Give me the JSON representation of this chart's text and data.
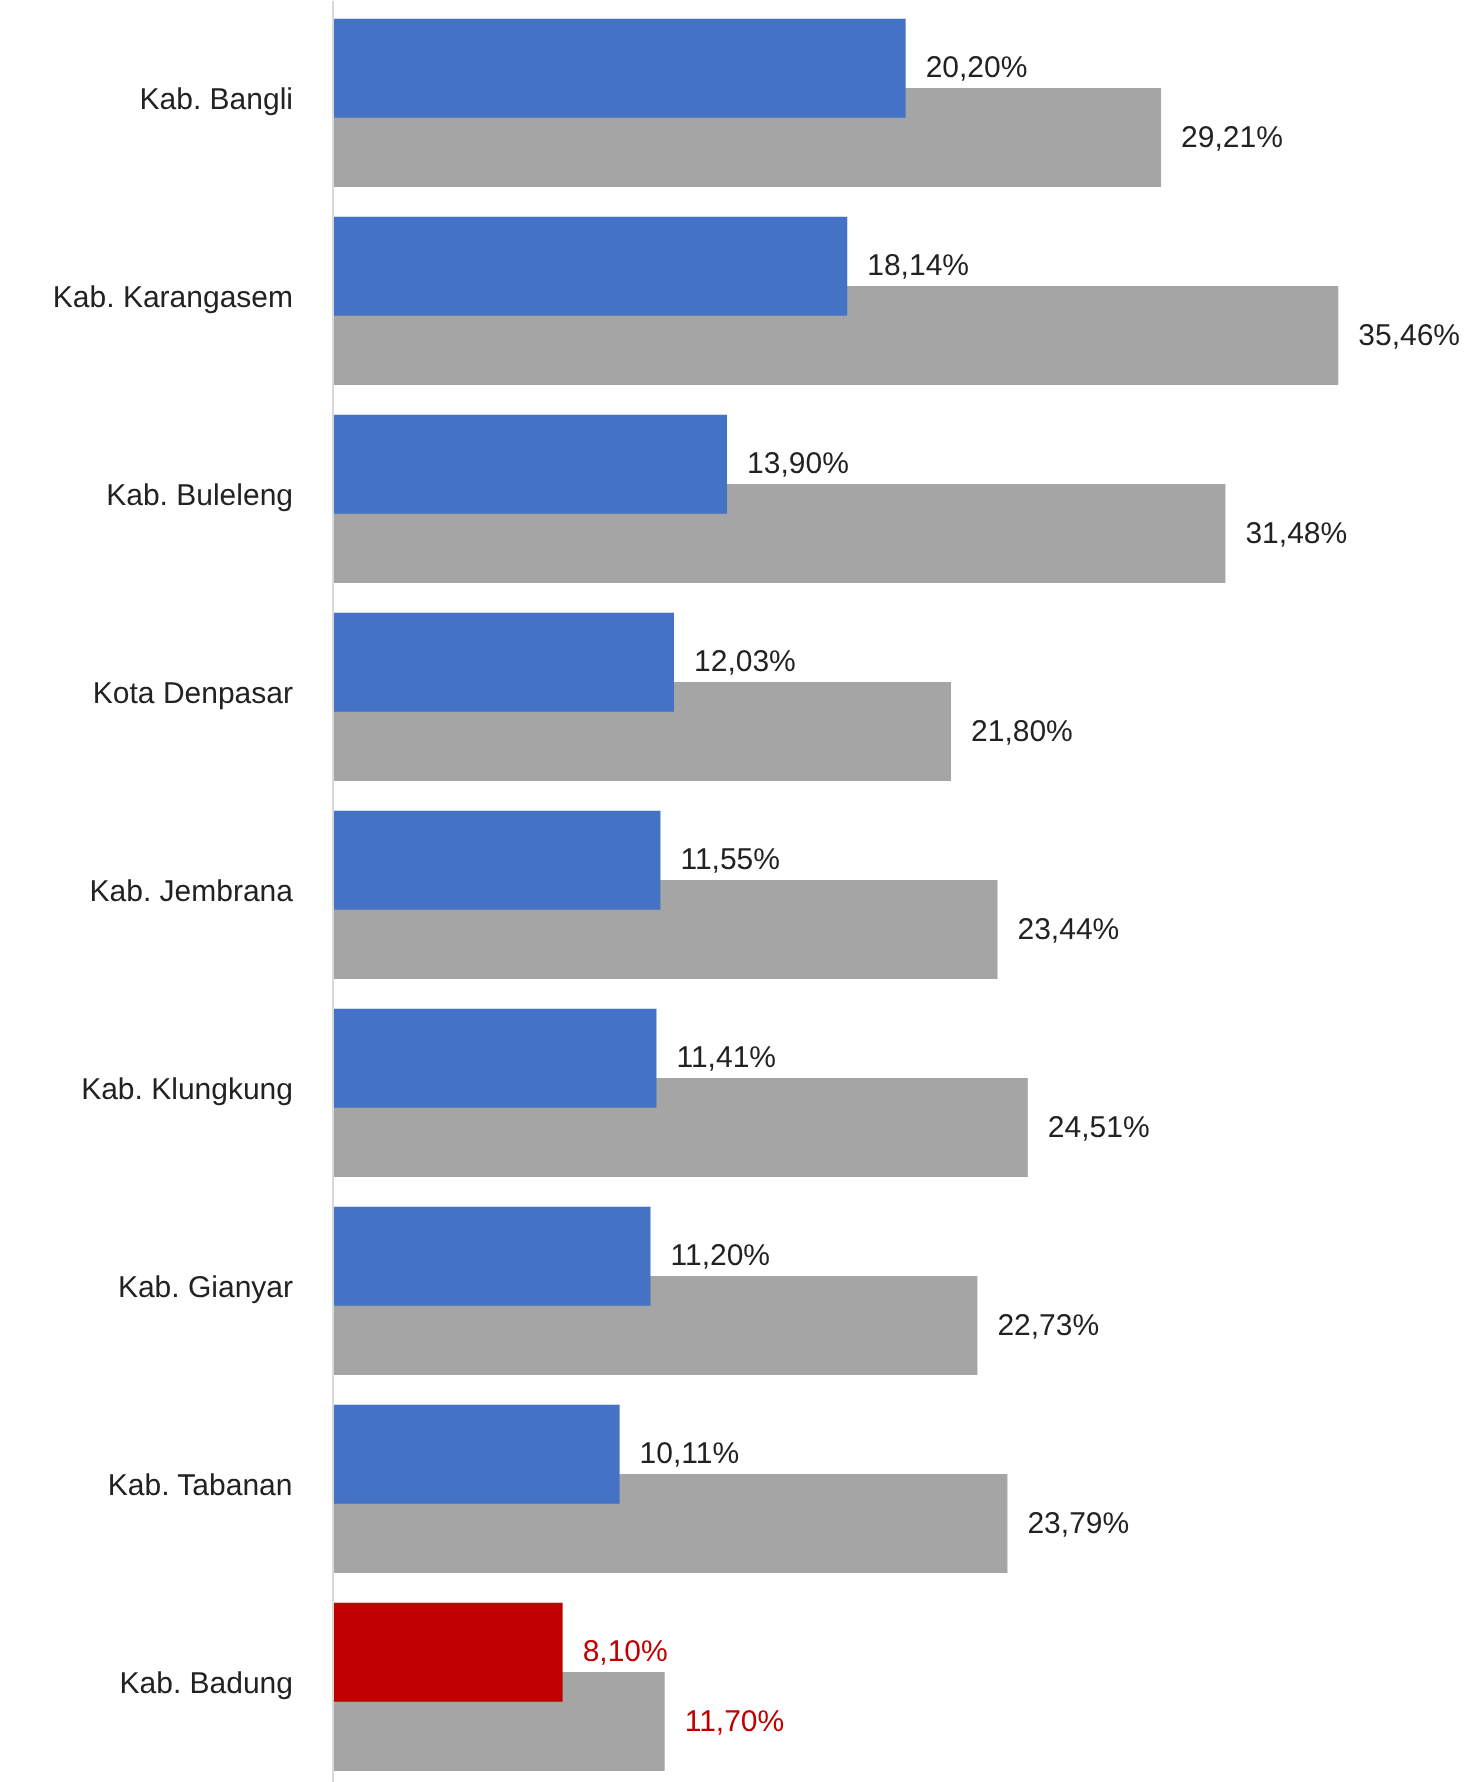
{
  "chart_data": {
    "type": "bar",
    "orientation": "horizontal",
    "categories": [
      "Kab. Bangli",
      "Kab. Karangasem",
      "Kab. Buleleng",
      "Kota Denpasar",
      "Kab. Jembrana",
      "Kab. Klungkung",
      "Kab. Gianyar",
      "Kab. Tabanan",
      "Kab. Badung"
    ],
    "series": [
      {
        "color": "#4472c4",
        "colors": [
          "#4472c4",
          "#4472c4",
          "#4472c4",
          "#4472c4",
          "#4472c4",
          "#4472c4",
          "#4472c4",
          "#4472c4",
          "#c00000"
        ],
        "values": [
          20.2,
          18.14,
          13.9,
          12.03,
          11.55,
          11.41,
          11.2,
          10.11,
          8.1
        ],
        "value_labels": [
          "20,20%",
          "18,14%",
          "13,90%",
          "12,03%",
          "11,55%",
          "11,41%",
          "11,20%",
          "10,11%",
          "8,10%"
        ]
      },
      {
        "color": "#a5a5a5",
        "values": [
          29.21,
          35.46,
          31.48,
          21.8,
          23.44,
          24.51,
          22.73,
          23.79,
          11.7
        ],
        "value_labels": [
          "29,21%",
          "35,46%",
          "31,48%",
          "21,80%",
          "23,44%",
          "24,51%",
          "22,73%",
          "23,79%",
          "11,70%"
        ]
      }
    ],
    "grid": false
  }
}
